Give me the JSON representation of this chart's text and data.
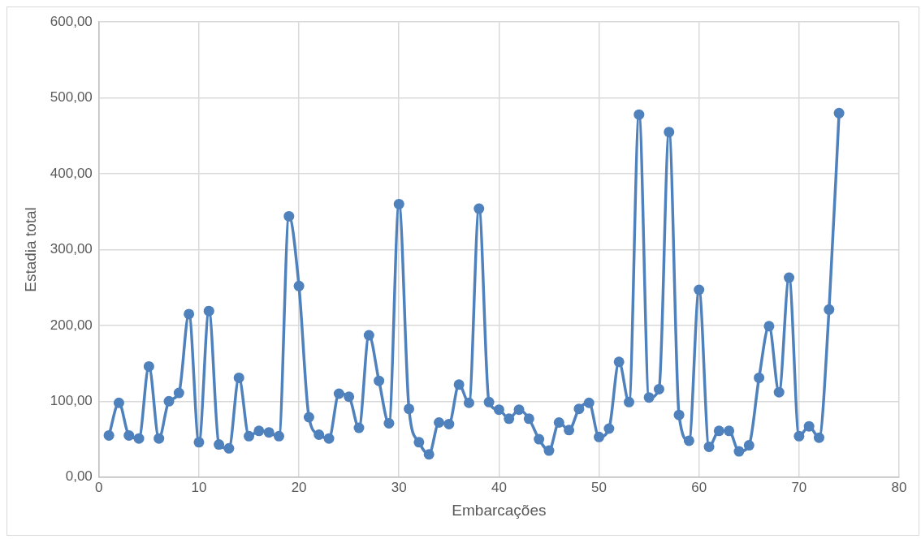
{
  "chart_data": {
    "type": "line",
    "xlabel": "Embarcações",
    "ylabel": "Estadia total",
    "x": [
      1,
      2,
      3,
      4,
      5,
      6,
      7,
      8,
      9,
      10,
      11,
      12,
      13,
      14,
      15,
      16,
      17,
      18,
      19,
      20,
      21,
      22,
      23,
      24,
      25,
      26,
      27,
      28,
      29,
      30,
      31,
      32,
      33,
      34,
      35,
      36,
      37,
      38,
      39,
      40,
      41,
      42,
      43,
      44,
      45,
      46,
      47,
      48,
      49,
      50,
      51,
      52,
      53,
      54,
      55,
      56,
      57,
      58,
      59,
      60,
      61,
      62,
      63,
      64,
      65,
      66,
      67,
      68,
      69,
      70,
      71,
      72,
      73,
      74
    ],
    "series": [
      {
        "color": "#4f81bd",
        "values": [
          55,
          98,
          55,
          51,
          146,
          51,
          100,
          111,
          215,
          46,
          219,
          43,
          38,
          131,
          54,
          61,
          59,
          54,
          344,
          252,
          79,
          56,
          51,
          110,
          106,
          65,
          187,
          127,
          71,
          360,
          90,
          46,
          30,
          72,
          70,
          122,
          98,
          354,
          99,
          89,
          77,
          89,
          77,
          50,
          35,
          72,
          62,
          90,
          98,
          53,
          64,
          152,
          99,
          478,
          105,
          116,
          455,
          82,
          48,
          247,
          40,
          61,
          61,
          34,
          42,
          131,
          199,
          112,
          263,
          54,
          67,
          52,
          221,
          480
        ]
      }
    ],
    "xlim": [
      0,
      80
    ],
    "xticks": [
      0,
      10,
      20,
      30,
      40,
      50,
      60,
      70,
      80
    ],
    "ylim": [
      0,
      600
    ],
    "yticks": [
      {
        "value": 0,
        "label": "0,00"
      },
      {
        "value": 100,
        "label": "100,00"
      },
      {
        "value": 200,
        "label": "200,00"
      },
      {
        "value": 300,
        "label": "300,00"
      },
      {
        "value": 400,
        "label": "400,00"
      },
      {
        "value": 500,
        "label": "500,00"
      },
      {
        "value": 600,
        "label": "600,00"
      }
    ],
    "grid": true,
    "legend": false,
    "marker": "circle",
    "line_style": "solid"
  }
}
